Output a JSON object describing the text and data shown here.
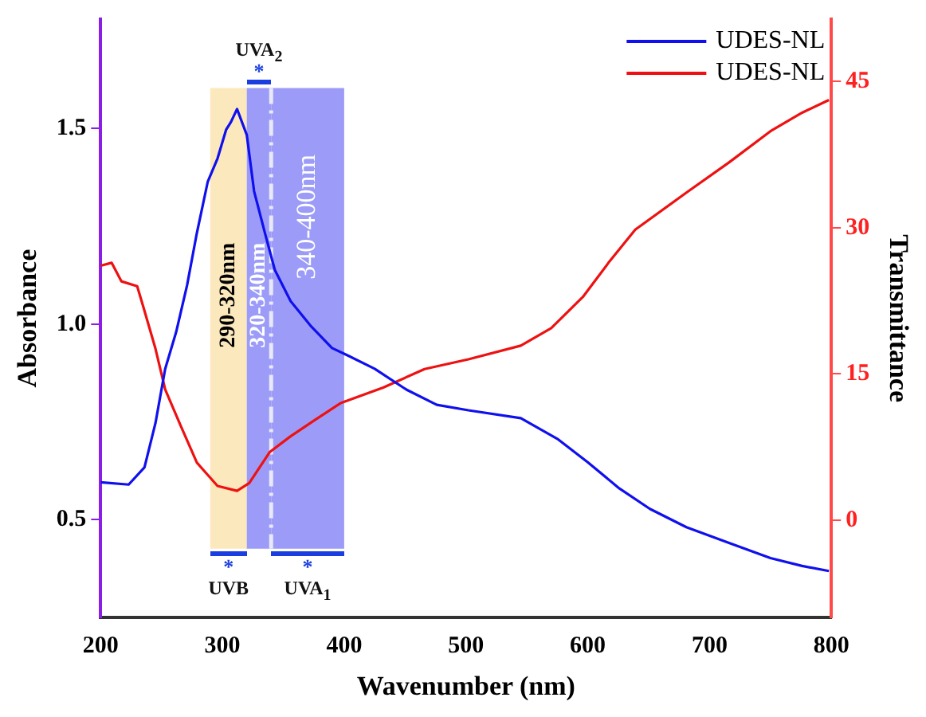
{
  "chart_data": {
    "type": "line",
    "xlabel": "Wavenumber (nm)",
    "ylabel": "Absorbance",
    "y2label": "Transmittance",
    "xlim": [
      200,
      800
    ],
    "xticks": [
      200,
      300,
      400,
      500,
      600,
      700,
      800
    ],
    "ylim": [
      0.25,
      1.78
    ],
    "yticks": [
      {
        "value": 0.5,
        "label": "0.5"
      },
      {
        "value": 1,
        "label": "1.0"
      },
      {
        "value": 1.5,
        "label": "1.5"
      }
    ],
    "y2lim": [
      -10,
      51.4
    ],
    "y2ticks": [
      0,
      15,
      30,
      45
    ],
    "grid": false,
    "legend": "top right",
    "marker": "none",
    "line_style": "solid",
    "series": [
      {
        "name": "UDES-NL",
        "color": "#1010ee",
        "x": [
          200,
          223,
          236,
          245,
          253,
          262,
          271,
          279,
          288,
          296,
          303,
          307,
          312,
          320,
          326,
          335,
          343,
          356,
          373,
          390,
          403,
          425,
          451,
          476,
          502,
          545,
          575,
          600,
          626,
          651,
          681,
          716,
          750,
          776,
          798
        ],
        "values": [
          0.596,
          0.59,
          0.634,
          0.747,
          0.886,
          0.98,
          1.1,
          1.233,
          1.365,
          1.424,
          1.497,
          1.517,
          1.55,
          1.484,
          1.34,
          1.232,
          1.139,
          1.059,
          0.994,
          0.939,
          0.92,
          0.886,
          0.833,
          0.794,
          0.78,
          0.76,
          0.707,
          0.647,
          0.58,
          0.528,
          0.481,
          0.441,
          0.402,
          0.382,
          0.369
        ]
      },
      {
        "name": "UDES-NL",
        "color": "#ee1111",
        "axis": "y2",
        "x": [
          200,
          209,
          217,
          230,
          235,
          245,
          253,
          266,
          279,
          296,
          312,
          322,
          339,
          356,
          375,
          397,
          432,
          466,
          502,
          545,
          570,
          596,
          617,
          639,
          681,
          716,
          750,
          776,
          798
        ],
        "values": [
          26.1,
          26.4,
          24.5,
          24.0,
          21.9,
          17.6,
          13.4,
          9.6,
          5.9,
          3.5,
          3.0,
          3.8,
          7.0,
          8.6,
          10.2,
          12.0,
          13.6,
          15.5,
          16.5,
          17.9,
          19.7,
          22.9,
          26.4,
          29.8,
          33.6,
          36.7,
          39.9,
          41.8,
          43.1
        ]
      }
    ],
    "bands": [
      {
        "axis": "x",
        "from": 290,
        "to": 320,
        "label": "290-320nm",
        "color": "#fce8bd"
      },
      {
        "axis": "x",
        "from": 320,
        "to": 340,
        "label": "320-340nm",
        "color": "#9c9cf8"
      },
      {
        "axis": "x",
        "from": 340,
        "to": 400,
        "label": "340-400nm",
        "color": "#9c9cf8"
      }
    ],
    "ref_lines": [
      {
        "axis": "x",
        "value": 340,
        "color": "#e8e8f8",
        "line_style": "dashed"
      }
    ],
    "annotations": [
      "*",
      "UVB",
      "*",
      "UVA$_{2}$",
      "*",
      "UVA$_{1}$"
    ]
  }
}
